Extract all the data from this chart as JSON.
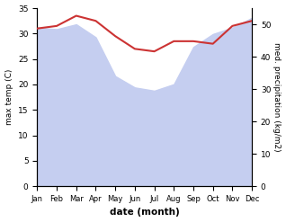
{
  "months": [
    "Jan",
    "Feb",
    "Mar",
    "Apr",
    "May",
    "Jun",
    "Jul",
    "Aug",
    "Sep",
    "Oct",
    "Nov",
    "Dec"
  ],
  "month_indices": [
    0,
    1,
    2,
    3,
    4,
    5,
    6,
    7,
    8,
    9,
    10,
    11
  ],
  "temperature": [
    31.0,
    31.5,
    33.5,
    32.5,
    29.5,
    27.0,
    26.5,
    28.5,
    28.5,
    28.0,
    31.5,
    32.5
  ],
  "precipitation": [
    49.0,
    48.5,
    50.0,
    46.0,
    34.0,
    30.5,
    29.5,
    31.5,
    43.0,
    47.0,
    49.0,
    52.0
  ],
  "temp_color": "#cc3333",
  "precip_color_fill": "#c5cef0",
  "left_ylabel": "max temp (C)",
  "right_ylabel": "med. precipitation (kg/m2)",
  "xlabel": "date (month)",
  "left_ylim": [
    0,
    35
  ],
  "right_ylim": [
    0,
    55
  ],
  "left_yticks": [
    0,
    5,
    10,
    15,
    20,
    25,
    30,
    35
  ],
  "right_yticks": [
    0,
    10,
    20,
    30,
    40,
    50
  ],
  "background_color": "#ffffff"
}
